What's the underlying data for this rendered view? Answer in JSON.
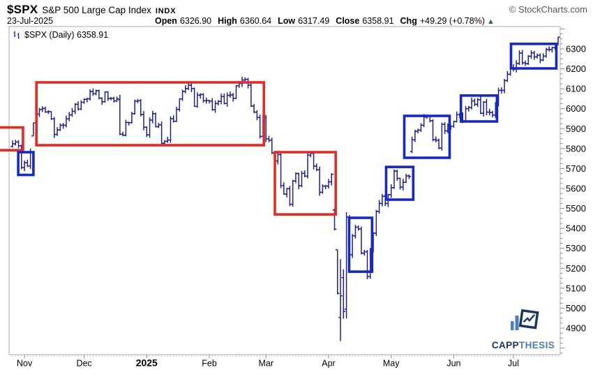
{
  "header": {
    "symbol": "$SPX",
    "name": "S&P 500 Large Cap Index",
    "exchange": "INDX",
    "credit": "© StockCharts.com",
    "date": "23-Jul-2025",
    "quote_items": [
      {
        "label": "Open",
        "value": "6326.90"
      },
      {
        "label": "High",
        "value": "6360.64"
      },
      {
        "label": "Low",
        "value": "6317.49"
      },
      {
        "label": "Close",
        "value": "6358.91"
      },
      {
        "label": "Chg",
        "value": "+49.29 (+0.78%)"
      }
    ],
    "direction": "up",
    "direction_icon": "▲"
  },
  "chart_label": {
    "text": "$SPX (Daily) 6358.91"
  },
  "watermark": {
    "capp": "CAPP",
    "thesis": "THESIS"
  },
  "colors": {
    "bar": "#1f1f96",
    "red_box": "#e62a20",
    "blue_box": "#1527cf",
    "border": "#adadad",
    "tick": "#8a8a8a",
    "axis_text": "#000000",
    "up_triangle": "#1a7a1f",
    "logo_dark": "#1c3663",
    "logo_light": "#4d7fbe"
  },
  "chart_data": {
    "type": "bar",
    "subtype": "ohlc-daily",
    "title": "$SPX (Daily)",
    "last_price": 6358.91,
    "grid": false,
    "legend": false,
    "y_range": [
      4767,
      6412
    ],
    "y_ticks_major": [
      4900,
      5000,
      5100,
      5200,
      5300,
      5400,
      5500,
      5600,
      5700,
      5800,
      5900,
      6000,
      6100,
      6200,
      6300
    ],
    "y_tick_minor_step": 25,
    "x_months": [
      {
        "label": "Nov",
        "i": 4,
        "year": false
      },
      {
        "label": "Dec",
        "i": 24,
        "year": false
      },
      {
        "label": "2025",
        "i": 45,
        "year": true
      },
      {
        "label": "Feb",
        "i": 66,
        "year": false
      },
      {
        "label": "Mar",
        "i": 85,
        "year": false
      },
      {
        "label": "Apr",
        "i": 106,
        "year": false
      },
      {
        "label": "May",
        "i": 127,
        "year": false
      },
      {
        "label": "Jun",
        "i": 148,
        "year": false
      },
      {
        "label": "Jul",
        "i": 168,
        "year": false
      }
    ],
    "closes": [
      5824,
      5833,
      5814,
      5705,
      5729,
      5713,
      5783,
      5929,
      5973,
      5996,
      6001,
      5984,
      5985,
      5949,
      5871,
      5894,
      5917,
      5917,
      5949,
      5969,
      5987,
      6022,
      5998,
      6032,
      6047,
      6050,
      6086,
      6075,
      6090,
      6053,
      6035,
      6084,
      6051,
      6052,
      6039,
      6050,
      5872,
      5867,
      5931,
      5930,
      5975,
      6038,
      6040,
      5971,
      5907,
      5869,
      5943,
      5975,
      5910,
      5919,
      5827,
      5837,
      5843,
      5950,
      5937,
      5997,
      6049,
      6086,
      6101,
      6118,
      6101,
      6012,
      6068,
      6071,
      6040,
      6041,
      6038,
      5995,
      6026,
      6037,
      6061,
      6026,
      6067,
      6069,
      6052,
      6115,
      6126,
      6144,
      6147,
      6118,
      6013,
      5983,
      5956,
      5861,
      5955,
      5849,
      5842,
      5778,
      5738,
      5770,
      5615,
      5572,
      5599,
      5521,
      5638,
      5675,
      5614,
      5676,
      5662,
      5767,
      5776,
      5712,
      5694,
      5581,
      5612,
      5612,
      5633,
      5671,
      5396,
      5074,
      5062,
      4983,
      5457,
      5268,
      5363,
      5406,
      5397,
      5276,
      5283,
      5158,
      5288,
      5376,
      5485,
      5525,
      5561,
      5525,
      5569,
      5604,
      5687,
      5651,
      5607,
      5631,
      5663,
      5660,
      5844,
      5887,
      5893,
      5917,
      5958,
      5964,
      5940,
      5845,
      5842,
      5803,
      5922,
      5889,
      5912,
      5912,
      5936,
      5970,
      5971,
      5939,
      6000,
      6006,
      6039,
      6022,
      6045,
      5977,
      6033,
      5983,
      5981,
      5968,
      6025,
      6092,
      6092,
      6141,
      6173,
      6205,
      6198,
      6227,
      6279,
      6230,
      6226,
      6263,
      6280,
      6260,
      6268,
      6244,
      6264,
      6297,
      6297,
      6306,
      6310,
      6358.91
    ],
    "ohlc_overrides": {
      "7": [
        5864,
        5930,
        5864,
        5929
      ],
      "36": [
        6045,
        6070,
        5867,
        5872
      ],
      "108": [
        5492,
        5499,
        5390,
        5396
      ],
      "109": [
        5293,
        5293,
        5069,
        5074
      ],
      "110": [
        4953,
        5246,
        4835,
        5062
      ],
      "111": [
        5153,
        5195,
        4947,
        4983
      ],
      "112": [
        4995,
        5481,
        4948,
        5457
      ],
      "134": [
        5785,
        5860,
        5778,
        5844
      ],
      "183": [
        6326.9,
        6360.64,
        6317.49,
        6358.91
      ]
    },
    "annotations": {
      "red_boxes": [
        {
          "i0": -6.6,
          "i1": 3.5,
          "p_low": 5792,
          "p_high": 5906
        },
        {
          "i0": 8.0,
          "i1": 84.3,
          "p_low": 5817,
          "p_high": 6132
        },
        {
          "i0": 88.0,
          "i1": 108.4,
          "p_low": 5470,
          "p_high": 5782
        }
      ],
      "blue_boxes": [
        {
          "i0": 1.9,
          "i1": 7.0,
          "p_low": 5668,
          "p_high": 5782
        },
        {
          "i0": 112.9,
          "i1": 120.6,
          "p_low": 5183,
          "p_high": 5453
        },
        {
          "i0": 125.3,
          "i1": 134.4,
          "p_low": 5544,
          "p_high": 5708
        },
        {
          "i0": 131.4,
          "i1": 146.6,
          "p_low": 5754,
          "p_high": 5964
        },
        {
          "i0": 150.4,
          "i1": 162.5,
          "p_low": 5936,
          "p_high": 6066
        },
        {
          "i0": 167.2,
          "i1": 182.4,
          "p_low": 6202,
          "p_high": 6325
        }
      ]
    }
  }
}
